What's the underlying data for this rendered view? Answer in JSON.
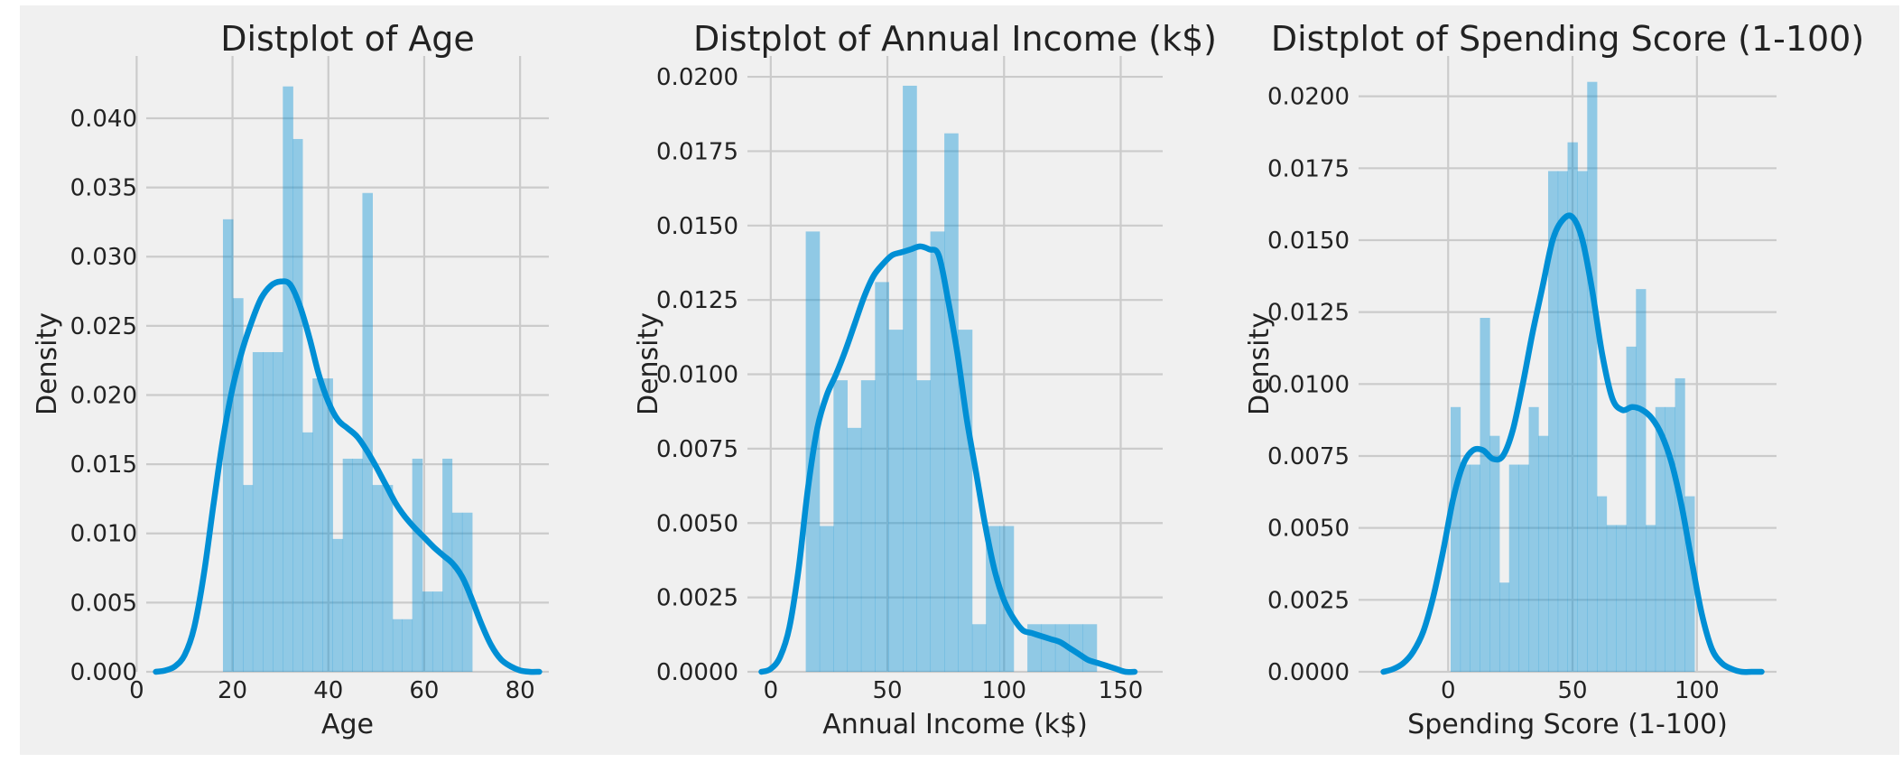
{
  "chart_data": [
    {
      "type": "bar",
      "title": "Distplot of Age",
      "xlabel": "Age",
      "ylabel": "Density",
      "xlim": [
        2,
        86
      ],
      "ylim": [
        0,
        0.0445
      ],
      "grid": true,
      "xticks": [
        0,
        20,
        40,
        60,
        80
      ],
      "yticks": [
        0.0,
        0.005,
        0.01,
        0.015,
        0.02,
        0.025,
        0.03,
        0.035,
        0.04
      ],
      "ytick_decimals": 3,
      "color": "#008fd5",
      "bins": [
        {
          "x0": 18.0,
          "x1": 20.1,
          "y": 0.0327
        },
        {
          "x0": 20.1,
          "x1": 22.2,
          "y": 0.027
        },
        {
          "x0": 22.2,
          "x1": 24.2,
          "y": 0.0135
        },
        {
          "x0": 24.2,
          "x1": 26.3,
          "y": 0.0231
        },
        {
          "x0": 26.3,
          "x1": 28.4,
          "y": 0.0231
        },
        {
          "x0": 28.4,
          "x1": 30.5,
          "y": 0.0231
        },
        {
          "x0": 30.5,
          "x1": 32.6,
          "y": 0.0423
        },
        {
          "x0": 32.6,
          "x1": 34.6,
          "y": 0.0385
        },
        {
          "x0": 34.6,
          "x1": 36.7,
          "y": 0.0173
        },
        {
          "x0": 36.7,
          "x1": 38.8,
          "y": 0.0212
        },
        {
          "x0": 38.8,
          "x1": 40.9,
          "y": 0.0212
        },
        {
          "x0": 40.9,
          "x1": 43.0,
          "y": 0.0096
        },
        {
          "x0": 43.0,
          "x1": 45.0,
          "y": 0.0154
        },
        {
          "x0": 45.0,
          "x1": 47.1,
          "y": 0.0154
        },
        {
          "x0": 47.1,
          "x1": 49.2,
          "y": 0.0346
        },
        {
          "x0": 49.2,
          "x1": 51.3,
          "y": 0.0135
        },
        {
          "x0": 51.3,
          "x1": 53.4,
          "y": 0.0135
        },
        {
          "x0": 53.4,
          "x1": 55.4,
          "y": 0.0038
        },
        {
          "x0": 55.4,
          "x1": 57.5,
          "y": 0.0038
        },
        {
          "x0": 57.5,
          "x1": 59.6,
          "y": 0.0154
        },
        {
          "x0": 59.6,
          "x1": 61.7,
          "y": 0.0058
        },
        {
          "x0": 61.7,
          "x1": 63.8,
          "y": 0.0058
        },
        {
          "x0": 63.8,
          "x1": 65.8,
          "y": 0.0154
        },
        {
          "x0": 65.8,
          "x1": 67.9,
          "y": 0.0115
        },
        {
          "x0": 67.9,
          "x1": 70.0,
          "y": 0.0115
        }
      ],
      "kde": {
        "x": [
          4,
          6,
          8,
          10,
          12,
          14,
          16,
          18,
          20,
          22,
          24,
          26,
          28,
          30,
          32,
          34,
          36,
          38,
          40,
          42,
          44,
          46,
          48,
          50,
          52,
          54,
          56,
          58,
          60,
          62,
          64,
          66,
          68,
          70,
          72,
          74,
          76,
          78,
          80,
          82,
          84
        ],
        "y": [
          0.0,
          0.0001,
          0.0004,
          0.0012,
          0.0032,
          0.007,
          0.012,
          0.0168,
          0.0205,
          0.0232,
          0.0253,
          0.027,
          0.0279,
          0.0282,
          0.028,
          0.0265,
          0.0242,
          0.0215,
          0.0195,
          0.0182,
          0.0176,
          0.017,
          0.016,
          0.0148,
          0.0135,
          0.0122,
          0.0112,
          0.0104,
          0.0097,
          0.009,
          0.0084,
          0.0078,
          0.0068,
          0.0052,
          0.0034,
          0.0019,
          0.0009,
          0.0004,
          0.0001,
          0.0,
          0.0
        ]
      }
    },
    {
      "type": "bar",
      "title": "Distplot of Annual Income (k$)",
      "xlabel": "Annual Income (k$)",
      "ylabel": "Density",
      "xlim": [
        -10,
        168
      ],
      "ylim": [
        0,
        0.0207
      ],
      "grid": true,
      "xticks": [
        0,
        50,
        100,
        150
      ],
      "yticks": [
        0.0,
        0.0025,
        0.005,
        0.0075,
        0.01,
        0.0125,
        0.015,
        0.0175,
        0.02
      ],
      "ytick_decimals": 4,
      "color": "#008fd5",
      "bins": [
        {
          "x0": 15.0,
          "x1": 20.9,
          "y": 0.0148
        },
        {
          "x0": 20.9,
          "x1": 26.9,
          "y": 0.0049
        },
        {
          "x0": 26.9,
          "x1": 32.8,
          "y": 0.0098
        },
        {
          "x0": 32.8,
          "x1": 38.7,
          "y": 0.0082
        },
        {
          "x0": 38.7,
          "x1": 44.7,
          "y": 0.0098
        },
        {
          "x0": 44.7,
          "x1": 50.6,
          "y": 0.0131
        },
        {
          "x0": 50.6,
          "x1": 56.6,
          "y": 0.0115
        },
        {
          "x0": 56.6,
          "x1": 62.5,
          "y": 0.0197
        },
        {
          "x0": 62.5,
          "x1": 68.4,
          "y": 0.0098
        },
        {
          "x0": 68.4,
          "x1": 74.4,
          "y": 0.0148
        },
        {
          "x0": 74.4,
          "x1": 80.3,
          "y": 0.0181
        },
        {
          "x0": 80.3,
          "x1": 86.3,
          "y": 0.0115
        },
        {
          "x0": 86.3,
          "x1": 92.2,
          "y": 0.0016
        },
        {
          "x0": 92.2,
          "x1": 98.2,
          "y": 0.0049
        },
        {
          "x0": 98.2,
          "x1": 104.1,
          "y": 0.0049
        },
        {
          "x0": 110.0,
          "x1": 116.0,
          "y": 0.0016
        },
        {
          "x0": 116.0,
          "x1": 121.9,
          "y": 0.0016
        },
        {
          "x0": 121.9,
          "x1": 127.8,
          "y": 0.0016
        },
        {
          "x0": 127.8,
          "x1": 133.8,
          "y": 0.0016
        },
        {
          "x0": 133.8,
          "x1": 139.7,
          "y": 0.0016
        }
      ],
      "kde": {
        "x": [
          -4,
          0,
          4,
          8,
          12,
          16,
          20,
          24,
          28,
          32,
          36,
          40,
          44,
          48,
          52,
          56,
          60,
          64,
          68,
          72,
          76,
          80,
          84,
          88,
          92,
          96,
          100,
          104,
          108,
          112,
          116,
          120,
          124,
          128,
          132,
          136,
          140,
          144,
          148,
          152,
          156
        ],
        "y": [
          0.0,
          0.0001,
          0.0005,
          0.0015,
          0.0035,
          0.0062,
          0.0082,
          0.0093,
          0.01,
          0.0108,
          0.0117,
          0.0126,
          0.0133,
          0.0137,
          0.014,
          0.0141,
          0.0142,
          0.0143,
          0.0142,
          0.014,
          0.0125,
          0.0107,
          0.0085,
          0.0067,
          0.0049,
          0.0034,
          0.0024,
          0.0018,
          0.0014,
          0.0013,
          0.0012,
          0.0011,
          0.001,
          0.0008,
          0.0006,
          0.0004,
          0.0003,
          0.0002,
          0.0001,
          0.0,
          0.0
        ]
      }
    },
    {
      "type": "bar",
      "title": "Distplot of Spending Score (1-100)",
      "xlabel": "Spending Score (1-100)",
      "ylabel": "Density",
      "xlim": [
        -36,
        132
      ],
      "ylim": [
        0,
        0.0214
      ],
      "grid": true,
      "xticks": [
        0,
        50,
        100
      ],
      "yticks": [
        0.0,
        0.0025,
        0.005,
        0.0075,
        0.01,
        0.0125,
        0.015,
        0.0175,
        0.02
      ],
      "ytick_decimals": 4,
      "color": "#008fd5",
      "bins": [
        {
          "x0": 1.0,
          "x1": 4.9,
          "y": 0.0092
        },
        {
          "x0": 4.9,
          "x1": 8.8,
          "y": 0.0072
        },
        {
          "x0": 8.8,
          "x1": 12.8,
          "y": 0.0072
        },
        {
          "x0": 12.8,
          "x1": 16.7,
          "y": 0.0123
        },
        {
          "x0": 16.7,
          "x1": 20.6,
          "y": 0.0082
        },
        {
          "x0": 20.6,
          "x1": 24.5,
          "y": 0.0031
        },
        {
          "x0": 24.5,
          "x1": 28.4,
          "y": 0.0072
        },
        {
          "x0": 28.4,
          "x1": 32.4,
          "y": 0.0072
        },
        {
          "x0": 32.4,
          "x1": 36.3,
          "y": 0.0092
        },
        {
          "x0": 36.3,
          "x1": 40.2,
          "y": 0.0082
        },
        {
          "x0": 40.2,
          "x1": 44.1,
          "y": 0.0174
        },
        {
          "x0": 44.1,
          "x1": 48.0,
          "y": 0.0174
        },
        {
          "x0": 48.0,
          "x1": 52.0,
          "y": 0.0184
        },
        {
          "x0": 52.0,
          "x1": 55.9,
          "y": 0.0174
        },
        {
          "x0": 55.9,
          "x1": 59.8,
          "y": 0.0205
        },
        {
          "x0": 59.8,
          "x1": 63.7,
          "y": 0.0061
        },
        {
          "x0": 63.7,
          "x1": 67.6,
          "y": 0.0051
        },
        {
          "x0": 67.6,
          "x1": 71.6,
          "y": 0.0051
        },
        {
          "x0": 71.6,
          "x1": 75.5,
          "y": 0.0113
        },
        {
          "x0": 75.5,
          "x1": 79.4,
          "y": 0.0133
        },
        {
          "x0": 79.4,
          "x1": 83.3,
          "y": 0.0051
        },
        {
          "x0": 83.3,
          "x1": 87.2,
          "y": 0.0092
        },
        {
          "x0": 87.2,
          "x1": 91.2,
          "y": 0.0092
        },
        {
          "x0": 91.2,
          "x1": 95.1,
          "y": 0.0102
        },
        {
          "x0": 95.1,
          "x1": 99.0,
          "y": 0.0061
        }
      ],
      "kde": {
        "x": [
          -26,
          -22,
          -18,
          -14,
          -10,
          -6,
          -2,
          2,
          6,
          10,
          14,
          18,
          22,
          26,
          30,
          34,
          38,
          42,
          46,
          50,
          54,
          58,
          62,
          66,
          70,
          74,
          78,
          82,
          86,
          90,
          94,
          98,
          102,
          106,
          110,
          114,
          118,
          122,
          126
        ],
        "y": [
          0.0,
          0.0001,
          0.0003,
          0.0007,
          0.0014,
          0.0026,
          0.0042,
          0.006,
          0.0072,
          0.0077,
          0.0077,
          0.0074,
          0.0075,
          0.0084,
          0.01,
          0.0118,
          0.0134,
          0.015,
          0.0157,
          0.0158,
          0.015,
          0.0132,
          0.011,
          0.0095,
          0.0091,
          0.0092,
          0.0091,
          0.0088,
          0.0082,
          0.0072,
          0.0057,
          0.0038,
          0.002,
          0.0008,
          0.0003,
          0.0001,
          0.0,
          0.0,
          0.0
        ]
      }
    }
  ]
}
